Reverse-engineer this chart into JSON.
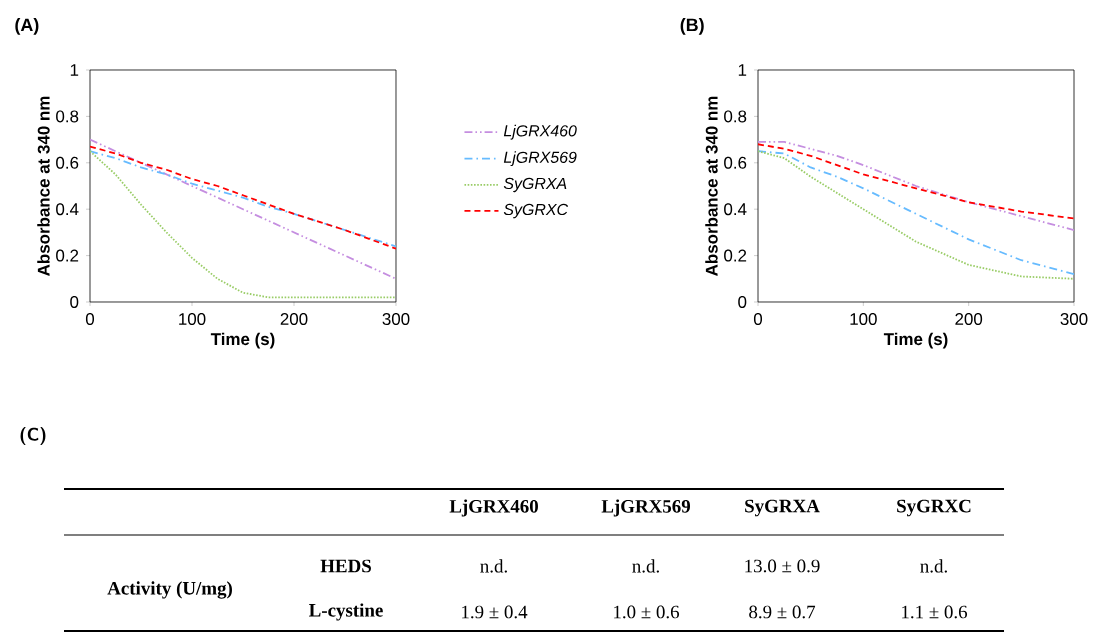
{
  "chart_data": [
    {
      "type": "line",
      "title": "(A)",
      "xlabel": "Time (s)",
      "ylabel": "Absorbance at 340 nm",
      "x": [
        0,
        25,
        50,
        75,
        100,
        125,
        150,
        175,
        200,
        250,
        300
      ],
      "xlim": [
        0,
        300
      ],
      "xticks": [
        0,
        100,
        200,
        300
      ],
      "ylim": [
        0,
        1
      ],
      "yticks": [
        0,
        0.2,
        0.4,
        0.6,
        0.8,
        1
      ],
      "legend": "right",
      "grid": false,
      "marker": "none",
      "series": [
        {
          "name": "LjGRX460",
          "color": "#c58ee0",
          "line_style": "dashdotdotted",
          "values": [
            0.7,
            0.65,
            0.6,
            0.55,
            0.5,
            0.45,
            0.4,
            0.35,
            0.3,
            0.2,
            0.1
          ]
        },
        {
          "name": "LjGRX569",
          "color": "#66bbff",
          "line_style": "dashdotted",
          "values": [
            0.65,
            0.62,
            0.58,
            0.55,
            0.51,
            0.48,
            0.45,
            0.41,
            0.38,
            0.31,
            0.24
          ]
        },
        {
          "name": "SyGRXA",
          "color": "#99cc66",
          "line_style": "dotted",
          "values": [
            0.65,
            0.55,
            0.42,
            0.3,
            0.19,
            0.1,
            0.04,
            0.02,
            0.02,
            0.02,
            0.02
          ]
        },
        {
          "name": "SyGRXC",
          "color": "#ff0000",
          "line_style": "dashed",
          "values": [
            0.67,
            0.64,
            0.6,
            0.57,
            0.53,
            0.5,
            0.46,
            0.42,
            0.38,
            0.31,
            0.23
          ]
        }
      ]
    },
    {
      "type": "line",
      "title": "(B)",
      "xlabel": "Time (s)",
      "ylabel": "Absorbance at 340 nm",
      "x": [
        0,
        25,
        50,
        75,
        100,
        150,
        200,
        250,
        300
      ],
      "xlim": [
        0,
        300
      ],
      "xticks": [
        0,
        100,
        200,
        300
      ],
      "ylim": [
        0,
        1
      ],
      "yticks": [
        0,
        0.2,
        0.4,
        0.6,
        0.8,
        1
      ],
      "grid": false,
      "marker": "none",
      "series": [
        {
          "color": "#c58ee0",
          "line_style": "dashdotdotted",
          "values": [
            0.69,
            0.69,
            0.66,
            0.63,
            0.59,
            0.5,
            0.43,
            0.37,
            0.31
          ]
        },
        {
          "color": "#66bbff",
          "line_style": "dashdotted",
          "values": [
            0.65,
            0.64,
            0.58,
            0.54,
            0.49,
            0.38,
            0.27,
            0.18,
            0.12
          ]
        },
        {
          "color": "#99cc66",
          "line_style": "dotted",
          "values": [
            0.65,
            0.62,
            0.54,
            0.47,
            0.4,
            0.26,
            0.16,
            0.11,
            0.1
          ]
        },
        {
          "color": "#ff0000",
          "line_style": "dashed",
          "values": [
            0.68,
            0.66,
            0.63,
            0.59,
            0.55,
            0.49,
            0.43,
            0.39,
            0.36
          ]
        }
      ]
    },
    {
      "type": "other",
      "title": "(C)",
      "annotations": [
        "LjGRX460",
        "LjGRX569",
        "SyGRXA",
        "SyGRXC",
        "Activity (U/mg)",
        "HEDS",
        "n.d.",
        "n.d.",
        "13.0 ± 0.9",
        "n.d.",
        "L-cystine",
        "1.9 ± 0.4",
        "1.0 ± 0.6",
        "8.9 ± 0.7",
        "1.1 ± 0.6"
      ]
    }
  ]
}
